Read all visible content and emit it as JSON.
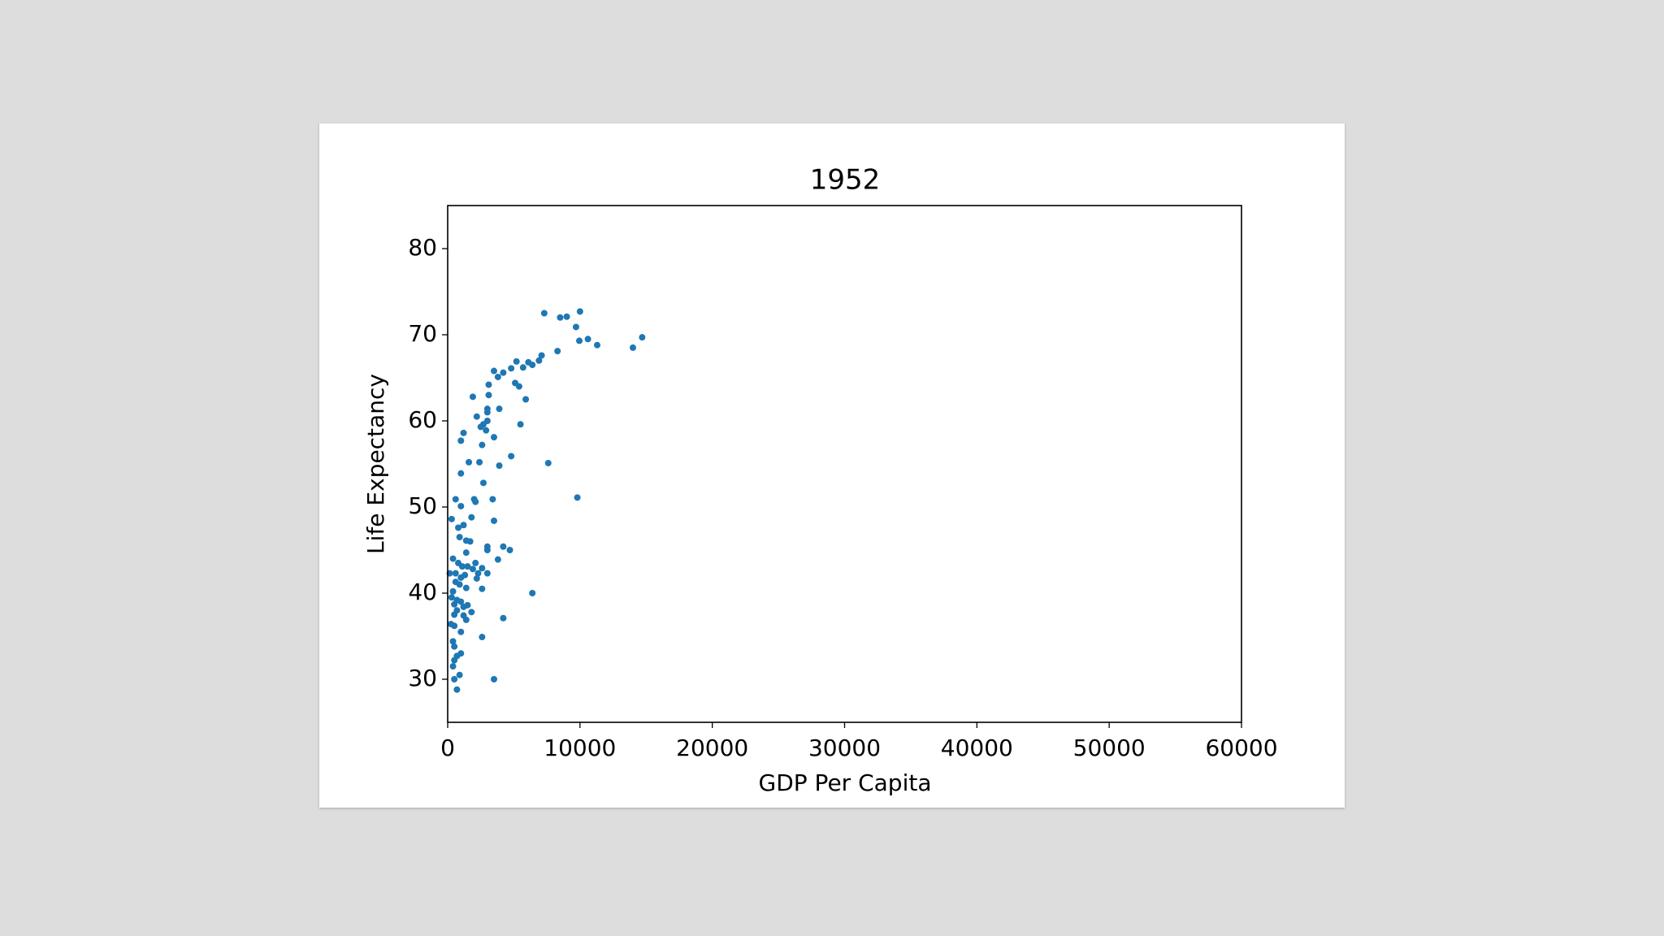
{
  "chart_data": {
    "type": "scatter",
    "title": "1952",
    "x_label": "GDP Per Capita",
    "y_label": "Life Expectancy",
    "color": "#1f77b4",
    "x": [
      7300,
      10000,
      8500,
      9000,
      9700,
      10600,
      9950,
      11300,
      14700,
      14000,
      8300,
      7100,
      6900,
      6100,
      6400,
      5700,
      5200,
      4800,
      3500,
      4200,
      3800,
      5100,
      5400,
      3100,
      3100,
      1900,
      5900,
      3900,
      3000,
      3000,
      2200,
      3000,
      2700,
      2500,
      2900,
      5500,
      1200,
      3500,
      1000,
      2600,
      4800,
      1600,
      2400,
      7600,
      3900,
      1000,
      2700,
      9800,
      600,
      2000,
      3400,
      2100,
      1000,
      1800,
      300,
      3500,
      1200,
      800,
      900,
      1400,
      1700,
      3000,
      4200,
      3000,
      4700,
      1400,
      400,
      800,
      3800,
      2100,
      1500,
      1100,
      1900,
      2600,
      150,
      600,
      2300,
      1300,
      3000,
      1000,
      2200,
      600,
      900,
      1400,
      2600,
      400,
      6400,
      300,
      700,
      1000,
      500,
      1500,
      1200,
      700,
      1800,
      500,
      1200,
      1400,
      4200,
      250,
      500,
      1000,
      2600,
      400,
      500,
      1000,
      700,
      500,
      400,
      900,
      500,
      3500,
      700
    ],
    "values": [
      72.5,
      72.7,
      72.0,
      72.1,
      70.9,
      69.5,
      69.3,
      68.8,
      69.7,
      68.5,
      68.1,
      67.6,
      67.0,
      66.8,
      66.5,
      66.2,
      66.9,
      66.1,
      65.8,
      65.6,
      65.1,
      64.4,
      64.0,
      64.2,
      63.0,
      62.8,
      62.5,
      61.4,
      61.4,
      61.0,
      60.5,
      60.0,
      59.6,
      59.3,
      58.9,
      59.6,
      58.6,
      58.1,
      57.7,
      57.2,
      55.9,
      55.2,
      55.2,
      55.1,
      54.8,
      53.9,
      52.8,
      51.1,
      50.9,
      50.9,
      50.9,
      50.6,
      50.1,
      48.8,
      48.6,
      48.4,
      47.9,
      47.6,
      46.5,
      46.1,
      46.0,
      45.4,
      45.4,
      45.0,
      45.0,
      44.7,
      44.0,
      43.5,
      43.9,
      43.5,
      43.1,
      43.1,
      42.8,
      42.9,
      42.3,
      42.3,
      42.3,
      42.1,
      42.3,
      41.8,
      41.7,
      41.3,
      41.0,
      40.6,
      40.5,
      40.2,
      40.0,
      39.5,
      39.2,
      39.0,
      38.7,
      38.6,
      38.4,
      38.0,
      37.8,
      37.5,
      37.4,
      36.9,
      37.1,
      36.4,
      36.2,
      35.5,
      34.9,
      34.4,
      33.8,
      33.0,
      32.7,
      32.2,
      31.5,
      30.5,
      30.0,
      30.0,
      28.8
    ],
    "xlim": [
      0,
      60000
    ],
    "xticks": [
      0,
      10000,
      20000,
      30000,
      40000,
      50000,
      60000
    ],
    "ylim": [
      25,
      85
    ],
    "yticks": [
      30,
      40,
      50,
      60,
      70,
      80
    ]
  }
}
